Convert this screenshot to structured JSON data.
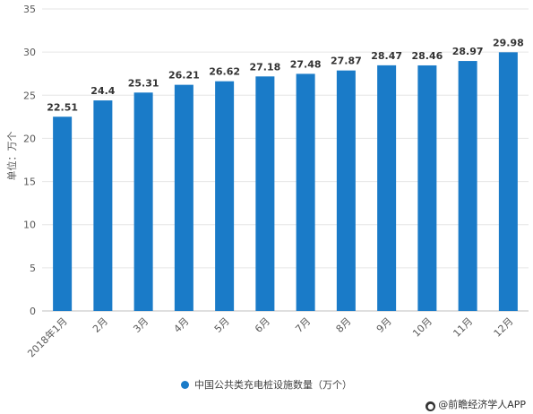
{
  "chart_data": {
    "type": "bar",
    "categories": [
      "2018年1月",
      "2月",
      "3月",
      "4月",
      "5月",
      "6月",
      "7月",
      "8月",
      "9月",
      "10月",
      "11月",
      "12月"
    ],
    "series": [
      {
        "name": "中国公共类充电桩设施数量（万个）",
        "values": [
          22.51,
          24.4,
          25.31,
          26.21,
          26.62,
          27.18,
          27.48,
          27.87,
          28.47,
          28.46,
          28.97,
          29.98
        ],
        "labels": [
          "22.51",
          "24.4",
          "25.31",
          "26.21",
          "26.62",
          "27.18",
          "27.48",
          "27.87",
          "28.47",
          "28.46",
          "28.97",
          "29.98"
        ]
      }
    ],
    "ylabel": "单位：万个",
    "ylim": [
      0,
      35
    ],
    "yticks": [
      0,
      5,
      10,
      15,
      20,
      25,
      30,
      35
    ],
    "grid": true,
    "legend_position": "bottom",
    "bar_color": "#1a7bc8"
  },
  "legend": {
    "label": "中国公共类充电桩设施数量（万个）"
  },
  "watermark": {
    "text": "@前瞻经济学人APP",
    "icon": "circle-logo-icon"
  }
}
